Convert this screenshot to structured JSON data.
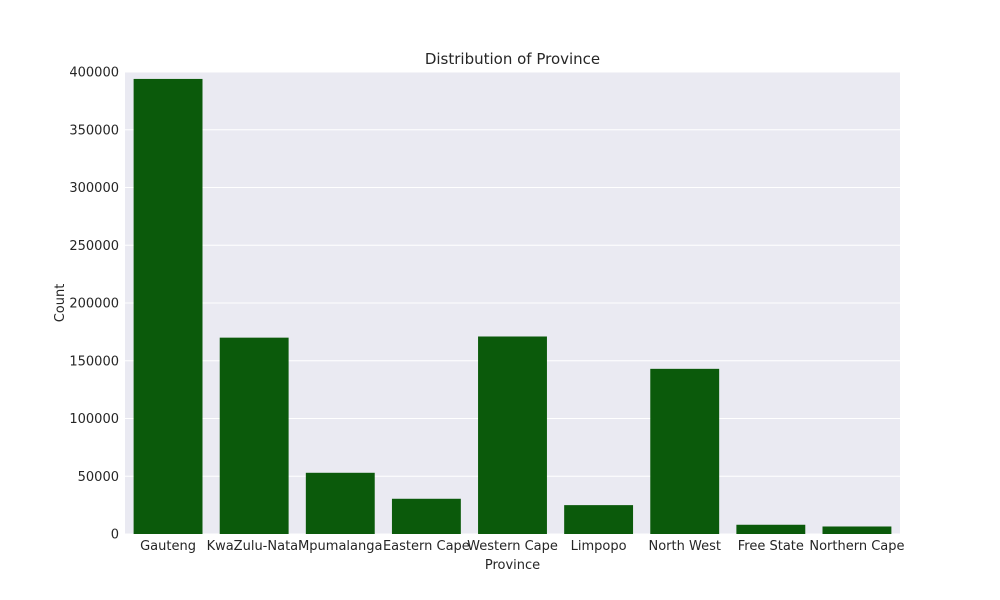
{
  "chart_data": {
    "type": "bar",
    "title": "Distribution of Province",
    "xlabel": "Province",
    "ylabel": "Count",
    "categories": [
      "Gauteng",
      "KwaZulu-Natal",
      "Mpumalanga",
      "Eastern Cape",
      "Western Cape",
      "Limpopo",
      "North West",
      "Free State",
      "Northern Cape"
    ],
    "values": [
      394000,
      170000,
      53000,
      30500,
      171000,
      25000,
      143000,
      8000,
      6500
    ],
    "ylim": [
      0,
      400000
    ],
    "yticks": [
      "0",
      "50000",
      "100000",
      "150000",
      "200000",
      "250000",
      "300000",
      "350000",
      "400000"
    ],
    "grid": true,
    "bar_color": "#0b5a0b",
    "background_color": "#eaeaf2",
    "grid_color": "#ffffff"
  }
}
